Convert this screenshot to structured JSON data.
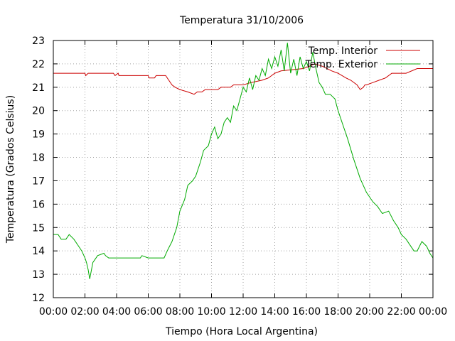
{
  "chart_data": {
    "type": "line",
    "title": "Temperatura 31/10/2006",
    "xlabel": "Tiempo (Hora Local Argentina)",
    "ylabel": "Temperatura (Grados Celsius)",
    "xlim": [
      0,
      24
    ],
    "ylim": [
      12,
      23
    ],
    "x_ticks": [
      "00:00",
      "02:00",
      "04:00",
      "06:00",
      "08:00",
      "10:00",
      "12:00",
      "14:00",
      "16:00",
      "18:00",
      "20:00",
      "22:00",
      "00:00"
    ],
    "y_ticks": [
      "12",
      "13",
      "14",
      "15",
      "16",
      "17",
      "18",
      "19",
      "20",
      "21",
      "22",
      "23"
    ],
    "grid": true,
    "legend_position": "top-right",
    "series": [
      {
        "name": "Temp. Interior",
        "color": "#cc0000",
        "x": [
          0,
          2,
          2.05,
          2.2,
          3.8,
          3.9,
          4.1,
          4.15,
          4.3,
          6,
          6.05,
          6.4,
          6.5,
          7.1,
          7.3,
          7.5,
          7.7,
          8,
          8.5,
          8.9,
          9.1,
          9.4,
          9.6,
          9.8,
          10.4,
          10.6,
          11.2,
          11.4,
          12,
          12.5,
          13.2,
          13.6,
          14,
          14.4,
          15.8,
          16.2,
          16.5,
          17,
          17.6,
          18,
          18.5,
          18.8,
          19.2,
          19.4,
          19.6,
          19.7,
          19.8,
          20.2,
          20.6,
          21,
          21.4,
          22.3,
          23,
          24
        ],
        "y": [
          21.6,
          21.6,
          21.5,
          21.6,
          21.6,
          21.5,
          21.6,
          21.5,
          21.5,
          21.5,
          21.4,
          21.4,
          21.5,
          21.5,
          21.3,
          21.1,
          21,
          20.9,
          20.8,
          20.7,
          20.8,
          20.8,
          20.9,
          20.9,
          20.9,
          21,
          21,
          21.1,
          21.1,
          21.2,
          21.3,
          21.4,
          21.6,
          21.7,
          21.8,
          21.9,
          22,
          21.9,
          21.7,
          21.6,
          21.4,
          21.3,
          21.1,
          20.9,
          21,
          21.1,
          21.1,
          21.2,
          21.3,
          21.4,
          21.6,
          21.6,
          21.8,
          21.8
        ],
        "values_approximate": true
      },
      {
        "name": "Temp. Exterior",
        "color": "#00aa00",
        "x": [
          0,
          0.3,
          0.5,
          0.8,
          1,
          1.3,
          1.6,
          1.8,
          2,
          2.1,
          2.2,
          2.3,
          2.5,
          2.8,
          3.2,
          3.3,
          3.5,
          4,
          5,
          5.5,
          5.6,
          6,
          6.5,
          7,
          7.2,
          7.5,
          7.8,
          8,
          8.3,
          8.5,
          8.8,
          9,
          9.3,
          9.5,
          9.8,
          10,
          10.2,
          10.4,
          10.6,
          10.8,
          11,
          11.2,
          11.4,
          11.6,
          11.8,
          12,
          12.2,
          12.4,
          12.6,
          12.8,
          13,
          13.2,
          13.4,
          13.6,
          13.8,
          14,
          14.2,
          14.4,
          14.6,
          14.8,
          15,
          15.2,
          15.4,
          15.6,
          15.8,
          16,
          16.2,
          16.4,
          16.6,
          16.8,
          17,
          17.2,
          17.5,
          17.8,
          18,
          18.3,
          18.6,
          19,
          19.4,
          19.8,
          20.2,
          20.5,
          20.8,
          21.2,
          21.5,
          21.8,
          22,
          22.3,
          22.5,
          22.8,
          23,
          23.3,
          23.6,
          23.8,
          24
        ],
        "y": [
          14.7,
          14.7,
          14.5,
          14.5,
          14.7,
          14.5,
          14.2,
          14,
          13.7,
          13.5,
          13.2,
          12.8,
          13.5,
          13.8,
          13.9,
          13.8,
          13.7,
          13.7,
          13.7,
          13.7,
          13.8,
          13.7,
          13.7,
          13.7,
          14,
          14.4,
          15,
          15.7,
          16.2,
          16.8,
          17,
          17.2,
          17.8,
          18.3,
          18.5,
          19,
          19.3,
          18.8,
          19,
          19.5,
          19.7,
          19.5,
          20.2,
          20,
          20.5,
          21,
          20.8,
          21.4,
          20.9,
          21.5,
          21.3,
          21.8,
          21.5,
          22.2,
          21.8,
          22.3,
          21.9,
          22.6,
          21.7,
          22.9,
          21.6,
          22.2,
          21.5,
          22.3,
          21.8,
          22.1,
          21.7,
          22.5,
          21.8,
          21.2,
          21,
          20.7,
          20.7,
          20.5,
          20,
          19.4,
          18.8,
          17.9,
          17.1,
          16.5,
          16.1,
          15.9,
          15.6,
          15.7,
          15.3,
          15,
          14.7,
          14.5,
          14.3,
          14,
          14,
          14.4,
          14.2,
          13.9,
          13.7
        ],
        "values_approximate": true
      }
    ]
  }
}
